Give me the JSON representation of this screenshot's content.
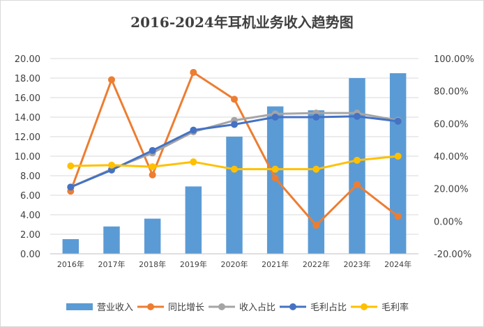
{
  "chart_data": {
    "type": "bar+line",
    "title": "2016-2024年耳机业务收入趋势图",
    "categories": [
      "2016年",
      "2017年",
      "2018年",
      "2019年",
      "2020年",
      "2021年",
      "2022年",
      "2023年",
      "2024年"
    ],
    "left_axis": {
      "ylim": [
        0,
        20
      ],
      "ticks": [
        "0.00",
        "2.00",
        "4.00",
        "6.00",
        "8.00",
        "10.00",
        "12.00",
        "14.00",
        "16.00",
        "18.00",
        "20.00"
      ]
    },
    "right_axis": {
      "ylim": [
        -20,
        100
      ],
      "unit": "%",
      "ticks": [
        "-20.00%",
        "0.00%",
        "20.00%",
        "40.00%",
        "60.00%",
        "80.00%",
        "100.00%"
      ]
    },
    "grid": true,
    "legend_position": "bottom",
    "series": [
      {
        "name": "营业收入",
        "type": "bar",
        "axis": "left",
        "color": "#5b9bd5",
        "values": [
          1.5,
          2.8,
          3.6,
          6.9,
          12.0,
          15.1,
          14.7,
          18.0,
          18.5
        ]
      },
      {
        "name": "同比增长",
        "type": "line",
        "axis": "right",
        "color": "#ed7d31",
        "values": [
          18.5,
          87.0,
          28.5,
          91.5,
          75.0,
          26.5,
          -2.5,
          22.5,
          3.0
        ]
      },
      {
        "name": "收入占比",
        "type": "line",
        "axis": "right",
        "color": "#a5a5a5",
        "values": [
          21.0,
          32.0,
          42.0,
          55.0,
          62.0,
          66.0,
          66.5,
          66.5,
          62.0
        ]
      },
      {
        "name": "毛利占比",
        "type": "line",
        "axis": "right",
        "color": "#4472c4",
        "values": [
          21.0,
          31.5,
          43.5,
          56.0,
          59.5,
          64.0,
          64.0,
          64.5,
          61.5
        ]
      },
      {
        "name": "毛利率",
        "type": "line",
        "axis": "right",
        "color": "#ffc000",
        "values": [
          34.0,
          34.5,
          33.5,
          36.5,
          32.0,
          32.0,
          32.0,
          37.5,
          40.0
        ]
      }
    ]
  }
}
